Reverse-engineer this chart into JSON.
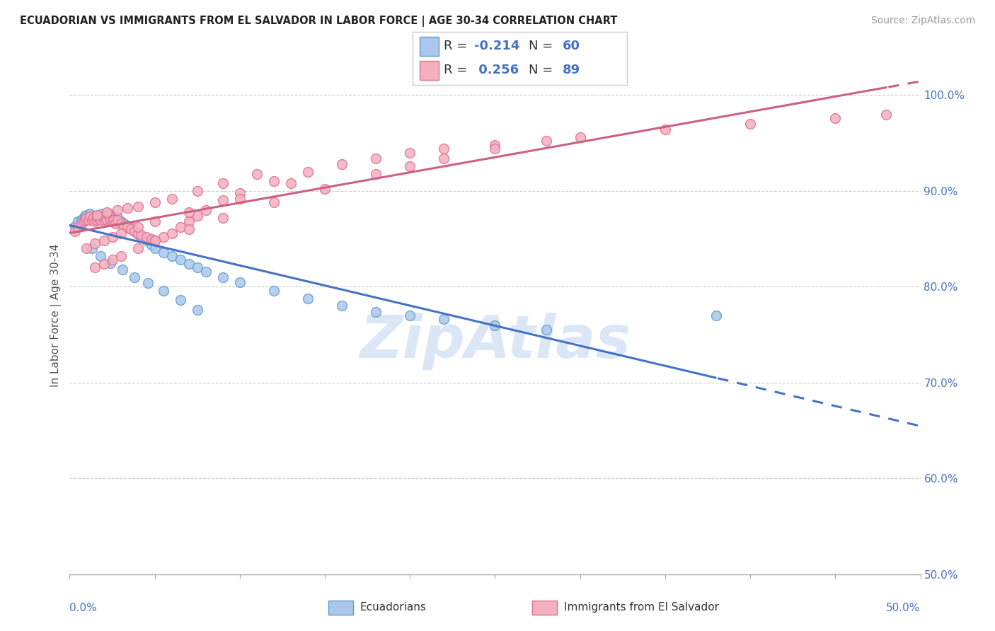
{
  "title": "ECUADORIAN VS IMMIGRANTS FROM EL SALVADOR IN LABOR FORCE | AGE 30-34 CORRELATION CHART",
  "source": "Source: ZipAtlas.com",
  "ylabel_label": "In Labor Force | Age 30-34",
  "legend_label1": "Ecuadorians",
  "legend_label2": "Immigrants from El Salvador",
  "R1": -0.214,
  "N1": 60,
  "R2": 0.256,
  "N2": 89,
  "color_blue": "#aac8ed",
  "color_blue_edge": "#6699cc",
  "color_pink": "#f5b0c0",
  "color_pink_edge": "#dd7090",
  "color_trend_blue": "#4472c4",
  "color_trend_pink": "#cc6080",
  "watermark_color": "#ccddf5",
  "xmin": 0.0,
  "xmax": 0.5,
  "ymin": 0.5,
  "ymax": 1.04,
  "ytick_vals": [
    0.5,
    0.6,
    0.7,
    0.8,
    0.9,
    1.0
  ],
  "ytick_labels": [
    "50.0%",
    "60.0%",
    "70.0%",
    "80.0%",
    "90.0%",
    "100.0%"
  ],
  "blue_x": [
    0.003,
    0.005,
    0.007,
    0.008,
    0.009,
    0.01,
    0.011,
    0.012,
    0.013,
    0.014,
    0.015,
    0.016,
    0.017,
    0.018,
    0.019,
    0.02,
    0.021,
    0.022,
    0.023,
    0.024,
    0.025,
    0.026,
    0.027,
    0.028,
    0.03,
    0.032,
    0.034,
    0.036,
    0.038,
    0.04,
    0.042,
    0.045,
    0.048,
    0.05,
    0.055,
    0.06,
    0.065,
    0.07,
    0.075,
    0.08,
    0.09,
    0.1,
    0.12,
    0.14,
    0.16,
    0.18,
    0.2,
    0.22,
    0.25,
    0.28,
    0.013,
    0.018,
    0.024,
    0.031,
    0.038,
    0.046,
    0.055,
    0.065,
    0.075,
    0.38
  ],
  "blue_y": [
    0.863,
    0.868,
    0.87,
    0.872,
    0.874,
    0.875,
    0.873,
    0.876,
    0.872,
    0.874,
    0.87,
    0.872,
    0.875,
    0.873,
    0.876,
    0.872,
    0.875,
    0.873,
    0.876,
    0.872,
    0.87,
    0.873,
    0.868,
    0.872,
    0.868,
    0.866,
    0.864,
    0.862,
    0.858,
    0.855,
    0.852,
    0.848,
    0.844,
    0.84,
    0.836,
    0.832,
    0.828,
    0.824,
    0.82,
    0.816,
    0.81,
    0.805,
    0.796,
    0.788,
    0.78,
    0.774,
    0.77,
    0.766,
    0.76,
    0.755,
    0.84,
    0.832,
    0.825,
    0.818,
    0.81,
    0.804,
    0.796,
    0.786,
    0.776,
    0.77
  ],
  "pink_x": [
    0.003,
    0.005,
    0.007,
    0.008,
    0.009,
    0.01,
    0.011,
    0.012,
    0.013,
    0.014,
    0.015,
    0.016,
    0.017,
    0.018,
    0.019,
    0.02,
    0.021,
    0.022,
    0.023,
    0.024,
    0.025,
    0.026,
    0.027,
    0.028,
    0.03,
    0.032,
    0.034,
    0.036,
    0.038,
    0.04,
    0.042,
    0.045,
    0.048,
    0.05,
    0.055,
    0.06,
    0.065,
    0.07,
    0.075,
    0.08,
    0.09,
    0.1,
    0.12,
    0.14,
    0.16,
    0.18,
    0.2,
    0.22,
    0.25,
    0.28,
    0.01,
    0.015,
    0.02,
    0.025,
    0.03,
    0.04,
    0.05,
    0.07,
    0.1,
    0.13,
    0.016,
    0.022,
    0.028,
    0.034,
    0.04,
    0.05,
    0.06,
    0.075,
    0.09,
    0.11,
    0.015,
    0.02,
    0.025,
    0.03,
    0.04,
    0.05,
    0.07,
    0.09,
    0.12,
    0.15,
    0.18,
    0.2,
    0.22,
    0.25,
    0.3,
    0.35,
    0.4,
    0.45,
    0.48
  ],
  "pink_y": [
    0.858,
    0.862,
    0.865,
    0.868,
    0.87,
    0.872,
    0.87,
    0.873,
    0.87,
    0.872,
    0.868,
    0.87,
    0.872,
    0.87,
    0.873,
    0.87,
    0.872,
    0.87,
    0.873,
    0.87,
    0.868,
    0.87,
    0.866,
    0.87,
    0.866,
    0.864,
    0.862,
    0.86,
    0.858,
    0.856,
    0.854,
    0.852,
    0.85,
    0.848,
    0.852,
    0.856,
    0.862,
    0.868,
    0.874,
    0.88,
    0.89,
    0.898,
    0.91,
    0.92,
    0.928,
    0.934,
    0.94,
    0.944,
    0.948,
    0.952,
    0.84,
    0.845,
    0.848,
    0.852,
    0.856,
    0.862,
    0.868,
    0.878,
    0.892,
    0.908,
    0.875,
    0.878,
    0.88,
    0.882,
    0.884,
    0.888,
    0.892,
    0.9,
    0.908,
    0.918,
    0.82,
    0.824,
    0.828,
    0.832,
    0.84,
    0.848,
    0.86,
    0.872,
    0.888,
    0.902,
    0.918,
    0.926,
    0.934,
    0.944,
    0.956,
    0.964,
    0.97,
    0.976,
    0.98
  ]
}
